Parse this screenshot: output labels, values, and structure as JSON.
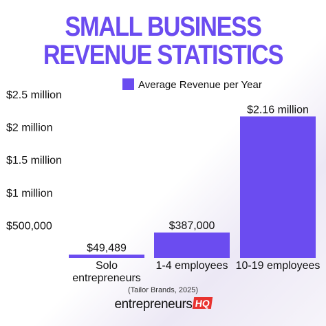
{
  "title_line1": "SMALL BUSINESS",
  "title_line2": "REVENUE STATISTICS",
  "source": "(Tailor Brands, 2025)",
  "logo": {
    "word": "entrepreneurs",
    "badge": "HQ"
  },
  "colors": {
    "title": "#6b4cf0",
    "bar": "#6b4cf0",
    "logo_badge": "#e8322f",
    "text": "#111111"
  },
  "chart_data": {
    "type": "bar",
    "title": "",
    "xlabel": "",
    "ylabel": "",
    "categories": [
      [
        "Solo",
        "entrepreneurs"
      ],
      [
        "1-4 employees"
      ],
      [
        "10-19 employees"
      ]
    ],
    "series": [
      {
        "name": "Average Revenue per Year",
        "values": [
          49489,
          387000,
          2160000
        ]
      }
    ],
    "data_labels": [
      "$49,489",
      "$387,000",
      "$2.16 million"
    ],
    "ylim": [
      0,
      2500000
    ],
    "yticks": [
      {
        "value": 500000,
        "label": "$500,000"
      },
      {
        "value": 1000000,
        "label": "$1 million"
      },
      {
        "value": 1500000,
        "label": "$1.5 million"
      },
      {
        "value": 2000000,
        "label": "$2 million"
      },
      {
        "value": 2500000,
        "label": "$2.5 million"
      }
    ],
    "legend": "top-right",
    "grid": false
  }
}
